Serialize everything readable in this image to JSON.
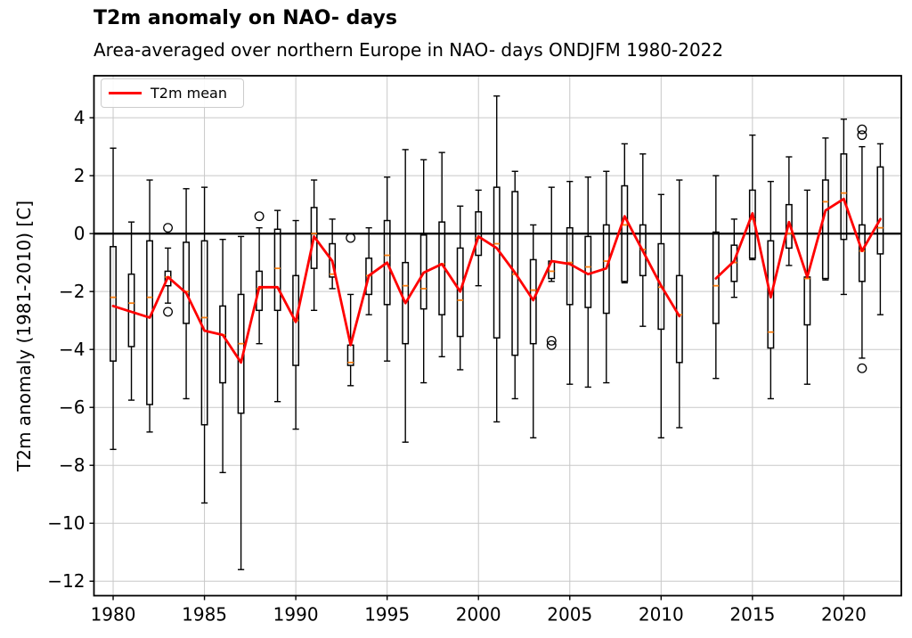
{
  "header": {
    "title": "T2m anomaly on NAO- days",
    "subtitle": "Area-averaged over northern Europe in NAO- days ONDJFM 1980-2022"
  },
  "chart_data": {
    "type": "boxplot_with_line",
    "title": "T2m anomaly on NAO- days",
    "subtitle": "Area-averaged over northern Europe in NAO- days ONDJFM 1980-2022",
    "xlabel": "",
    "ylabel": "T2m anomaly (1981-2010) [C]",
    "legend": {
      "label": "T2m mean",
      "position": "upper-left"
    },
    "grid": true,
    "zero_line": true,
    "xlim": [
      1978.95,
      2023.15
    ],
    "ylim": [
      -12.5,
      5.45
    ],
    "xticks": [
      1980,
      1985,
      1990,
      1995,
      2000,
      2005,
      2010,
      2015,
      2020
    ],
    "yticks": [
      4,
      2,
      0,
      -2,
      -4,
      -6,
      -8,
      -10,
      -12
    ],
    "colors": {
      "mean_line": "#ff0000",
      "median": "#ff7f0e",
      "box": "#000000",
      "grid": "#c8c8c8",
      "zero_line": "#000000",
      "frame": "#000000"
    },
    "note": "boxes: per-year box-and-whisker stats [C]; mean is the red T2m mean line; 2012 has no data (line gap)",
    "boxes": [
      {
        "year": 1980,
        "lo": -7.45,
        "q1": -4.4,
        "med": -2.2,
        "q3": -0.45,
        "hi": 2.95,
        "mean": -2.5,
        "outliers": []
      },
      {
        "year": 1981,
        "lo": -5.75,
        "q1": -3.9,
        "med": -2.4,
        "q3": -1.4,
        "hi": 0.4,
        "mean": -2.7,
        "outliers": []
      },
      {
        "year": 1982,
        "lo": -6.85,
        "q1": -5.9,
        "med": -2.2,
        "q3": -0.25,
        "hi": 1.85,
        "mean": -2.9,
        "outliers": []
      },
      {
        "year": 1983,
        "lo": -2.4,
        "q1": -1.8,
        "med": -1.5,
        "q3": -1.3,
        "hi": -0.5,
        "mean": -1.5,
        "outliers": [
          0.2,
          -2.7
        ]
      },
      {
        "year": 1984,
        "lo": -5.7,
        "q1": -3.1,
        "med": -2.0,
        "q3": -0.3,
        "hi": 1.55,
        "mean": -2.05,
        "outliers": []
      },
      {
        "year": 1985,
        "lo": -9.3,
        "q1": -6.6,
        "med": -2.9,
        "q3": -0.25,
        "hi": 1.6,
        "mean": -3.35,
        "outliers": []
      },
      {
        "year": 1986,
        "lo": -8.25,
        "q1": -5.15,
        "med": -3.5,
        "q3": -2.5,
        "hi": -0.2,
        "mean": -3.5,
        "outliers": []
      },
      {
        "year": 1987,
        "lo": -11.6,
        "q1": -6.2,
        "med": -3.8,
        "q3": -2.1,
        "hi": -0.1,
        "mean": -4.45,
        "outliers": []
      },
      {
        "year": 1988,
        "lo": -3.8,
        "q1": -2.65,
        "med": -1.9,
        "q3": -1.3,
        "hi": 0.2,
        "mean": -1.85,
        "outliers": [
          0.6
        ]
      },
      {
        "year": 1989,
        "lo": -5.8,
        "q1": -2.65,
        "med": -1.2,
        "q3": 0.15,
        "hi": 0.8,
        "mean": -1.85,
        "outliers": []
      },
      {
        "year": 1990,
        "lo": -6.75,
        "q1": -4.55,
        "med": -3.0,
        "q3": -1.45,
        "hi": 0.45,
        "mean": -3.05,
        "outliers": []
      },
      {
        "year": 1991,
        "lo": -2.65,
        "q1": -1.2,
        "med": 0.0,
        "q3": 0.9,
        "hi": 1.85,
        "mean": -0.1,
        "outliers": []
      },
      {
        "year": 1992,
        "lo": -1.9,
        "q1": -1.5,
        "med": -1.4,
        "q3": -0.35,
        "hi": 0.5,
        "mean": -0.95,
        "outliers": []
      },
      {
        "year": 1993,
        "lo": -5.25,
        "q1": -4.55,
        "med": -4.45,
        "q3": -3.85,
        "hi": -2.1,
        "mean": -3.85,
        "outliers": [
          -0.15
        ]
      },
      {
        "year": 1994,
        "lo": -2.8,
        "q1": -2.1,
        "med": -1.45,
        "q3": -0.85,
        "hi": 0.2,
        "mean": -1.45,
        "outliers": []
      },
      {
        "year": 1995,
        "lo": -4.4,
        "q1": -2.45,
        "med": -0.75,
        "q3": 0.45,
        "hi": 1.95,
        "mean": -1.0,
        "outliers": []
      },
      {
        "year": 1996,
        "lo": -7.2,
        "q1": -3.8,
        "med": -1.8,
        "q3": -1.0,
        "hi": 2.9,
        "mean": -2.4,
        "outliers": []
      },
      {
        "year": 1997,
        "lo": -5.15,
        "q1": -2.6,
        "med": -1.9,
        "q3": -0.05,
        "hi": 2.55,
        "mean": -1.35,
        "outliers": []
      },
      {
        "year": 1998,
        "lo": -4.25,
        "q1": -2.8,
        "med": -1.05,
        "q3": 0.4,
        "hi": 2.8,
        "mean": -1.05,
        "outliers": []
      },
      {
        "year": 1999,
        "lo": -4.7,
        "q1": -3.55,
        "med": -2.3,
        "q3": -0.5,
        "hi": 0.95,
        "mean": -2.0,
        "outliers": []
      },
      {
        "year": 2000,
        "lo": -1.8,
        "q1": -0.75,
        "med": -0.15,
        "q3": 0.75,
        "hi": 1.5,
        "mean": -0.1,
        "outliers": []
      },
      {
        "year": 2001,
        "lo": -6.5,
        "q1": -3.6,
        "med": -0.35,
        "q3": 1.6,
        "hi": 4.75,
        "mean": -0.5,
        "outliers": []
      },
      {
        "year": 2002,
        "lo": -5.7,
        "q1": -4.2,
        "med": -1.4,
        "q3": 1.45,
        "hi": 2.15,
        "mean": -1.35,
        "outliers": []
      },
      {
        "year": 2003,
        "lo": -7.05,
        "q1": -3.8,
        "med": -1.95,
        "q3": -0.9,
        "hi": 0.3,
        "mean": -2.3,
        "outliers": []
      },
      {
        "year": 2004,
        "lo": -1.65,
        "q1": -1.55,
        "med": -1.3,
        "q3": -0.95,
        "hi": 1.6,
        "mean": -0.95,
        "outliers": [
          -3.7,
          -3.85
        ]
      },
      {
        "year": 2005,
        "lo": -5.2,
        "q1": -2.45,
        "med": -1.0,
        "q3": 0.2,
        "hi": 1.8,
        "mean": -1.05,
        "outliers": []
      },
      {
        "year": 2006,
        "lo": -5.3,
        "q1": -2.55,
        "med": -1.15,
        "q3": -0.1,
        "hi": 1.95,
        "mean": -1.4,
        "outliers": []
      },
      {
        "year": 2007,
        "lo": -5.15,
        "q1": -2.75,
        "med": -0.95,
        "q3": 0.3,
        "hi": 2.15,
        "mean": -1.2,
        "outliers": []
      },
      {
        "year": 2008,
        "lo": -1.7,
        "q1": -1.65,
        "med": 0.3,
        "q3": 1.65,
        "hi": 3.1,
        "mean": 0.6,
        "outliers": []
      },
      {
        "year": 2009,
        "lo": -3.2,
        "q1": -1.45,
        "med": -0.55,
        "q3": 0.3,
        "hi": 2.75,
        "mean": -0.6,
        "outliers": []
      },
      {
        "year": 2010,
        "lo": -7.05,
        "q1": -3.3,
        "med": -1.85,
        "q3": -0.35,
        "hi": 1.35,
        "mean": -1.8,
        "outliers": []
      },
      {
        "year": 2011,
        "lo": -6.7,
        "q1": -4.45,
        "med": -2.8,
        "q3": -1.45,
        "hi": 1.85,
        "mean": -2.85,
        "outliers": []
      },
      {
        "year": 2012,
        "lo": null,
        "q1": null,
        "med": null,
        "q3": null,
        "hi": null,
        "mean": null,
        "outliers": []
      },
      {
        "year": 2013,
        "lo": -5.0,
        "q1": -3.1,
        "med": -1.8,
        "q3": 0.05,
        "hi": 2.0,
        "mean": -1.55,
        "outliers": []
      },
      {
        "year": 2014,
        "lo": -2.2,
        "q1": -1.65,
        "med": -1.0,
        "q3": -0.4,
        "hi": 0.5,
        "mean": -0.95,
        "outliers": []
      },
      {
        "year": 2015,
        "lo": -0.9,
        "q1": -0.85,
        "med": 0.5,
        "q3": 1.5,
        "hi": 3.4,
        "mean": 0.7,
        "outliers": []
      },
      {
        "year": 2016,
        "lo": -5.7,
        "q1": -3.95,
        "med": -3.4,
        "q3": -0.25,
        "hi": 1.8,
        "mean": -2.2,
        "outliers": []
      },
      {
        "year": 2017,
        "lo": -1.1,
        "q1": -0.5,
        "med": 0.0,
        "q3": 1.0,
        "hi": 2.65,
        "mean": 0.4,
        "outliers": []
      },
      {
        "year": 2018,
        "lo": -5.2,
        "q1": -3.15,
        "med": -1.55,
        "q3": -1.5,
        "hi": 1.5,
        "mean": -1.5,
        "outliers": []
      },
      {
        "year": 2019,
        "lo": -1.6,
        "q1": -1.55,
        "med": 1.1,
        "q3": 1.85,
        "hi": 3.3,
        "mean": 0.8,
        "outliers": []
      },
      {
        "year": 2020,
        "lo": -2.1,
        "q1": -0.2,
        "med": 1.4,
        "q3": 2.75,
        "hi": 3.95,
        "mean": 1.2,
        "outliers": []
      },
      {
        "year": 2021,
        "lo": -4.3,
        "q1": -1.65,
        "med": -0.6,
        "q3": 0.3,
        "hi": 3.0,
        "mean": -0.6,
        "outliers": [
          3.6,
          3.4,
          -4.65
        ]
      },
      {
        "year": 2022,
        "lo": -2.8,
        "q1": -0.7,
        "med": 0.2,
        "q3": 2.3,
        "hi": 3.1,
        "mean": 0.5,
        "outliers": []
      }
    ]
  }
}
